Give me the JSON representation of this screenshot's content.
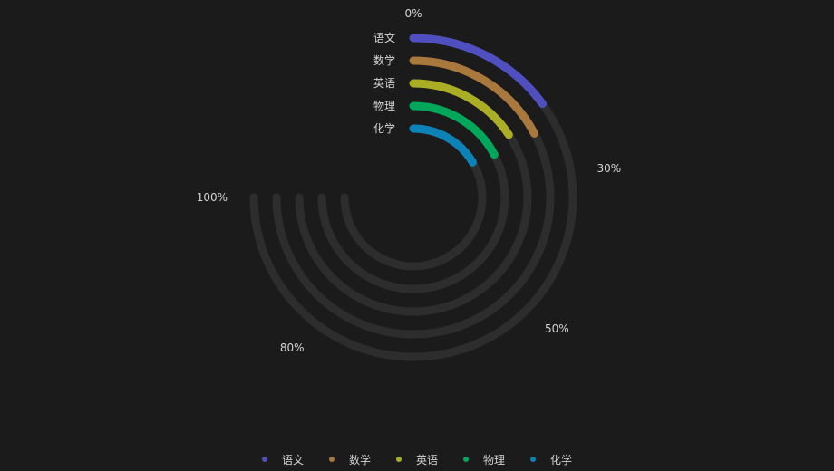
{
  "chart_data": {
    "type": "radial-bar",
    "title": "",
    "categories": [
      "语文",
      "数学",
      "英语",
      "物理",
      "化学"
    ],
    "values": [
      20,
      23,
      21,
      23,
      22
    ],
    "max": 100,
    "radius_ticks": [
      "0%",
      "30%",
      "50%",
      "80%",
      "100%"
    ],
    "legend": {
      "position": "bottom",
      "items": [
        "语文",
        "数学",
        "英语",
        "物理",
        "化学"
      ]
    },
    "colors": {
      "series": [
        "#4f4fbf",
        "#a8783c",
        "#aaae25",
        "#00a65a",
        "#0d82b6"
      ],
      "track": "#2d2d2d",
      "text": "#d4d4d4",
      "background": "#1b1b1b"
    }
  }
}
